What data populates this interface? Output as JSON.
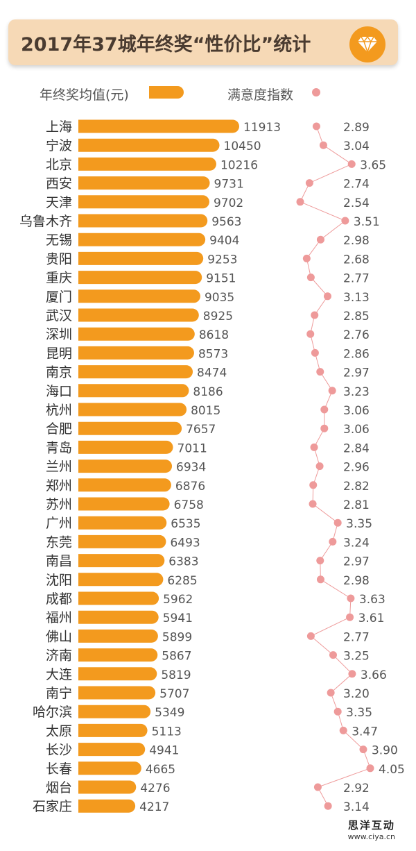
{
  "header": {
    "title": "2017年37城年终奖“性价比”统计"
  },
  "legend": {
    "salary_label": "年终奖均值(元)",
    "satisfaction_label": "满意度指数"
  },
  "colors": {
    "bar": "#f39a1e",
    "dot": "#ee9a9a",
    "line": "#ee9a9a",
    "header_bg": "#f6d9b6",
    "badge": "#f39a1e"
  },
  "footer": {
    "name": "思洋互动",
    "url": "www.ciya.cn"
  },
  "chart_data": {
    "type": "bar",
    "categories": [
      "上海",
      "宁波",
      "北京",
      "西安",
      "天津",
      "乌鲁木齐",
      "无锡",
      "贵阳",
      "重庆",
      "厦门",
      "武汉",
      "深圳",
      "昆明",
      "南京",
      "海口",
      "杭州",
      "合肥",
      "青岛",
      "兰州",
      "郑州",
      "苏州",
      "广州",
      "东莞",
      "南昌",
      "沈阳",
      "成都",
      "福州",
      "佛山",
      "济南",
      "大连",
      "南宁",
      "哈尔滨",
      "太原",
      "长沙",
      "长春",
      "烟台",
      "石家庄"
    ],
    "series": [
      {
        "name": "年终奖均值(元)",
        "type": "bar",
        "values": [
          11913,
          10450,
          10216,
          9731,
          9702,
          9563,
          9404,
          9253,
          9151,
          9035,
          8925,
          8618,
          8573,
          8474,
          8186,
          8015,
          7657,
          7011,
          6934,
          6876,
          6758,
          6535,
          6493,
          6383,
          6285,
          5962,
          5941,
          5899,
          5867,
          5819,
          5707,
          5349,
          5113,
          4941,
          4665,
          4276,
          4217
        ]
      },
      {
        "name": "满意度指数",
        "type": "line",
        "values": [
          2.89,
          3.04,
          3.65,
          2.74,
          2.54,
          3.51,
          2.98,
          2.68,
          2.77,
          3.13,
          2.85,
          2.76,
          2.86,
          2.97,
          3.23,
          3.06,
          3.06,
          2.84,
          2.96,
          2.82,
          2.81,
          3.35,
          3.24,
          2.97,
          2.98,
          3.63,
          3.61,
          2.77,
          3.25,
          3.66,
          3.2,
          3.35,
          3.47,
          3.9,
          4.05,
          2.92,
          3.14
        ]
      }
    ]
  }
}
